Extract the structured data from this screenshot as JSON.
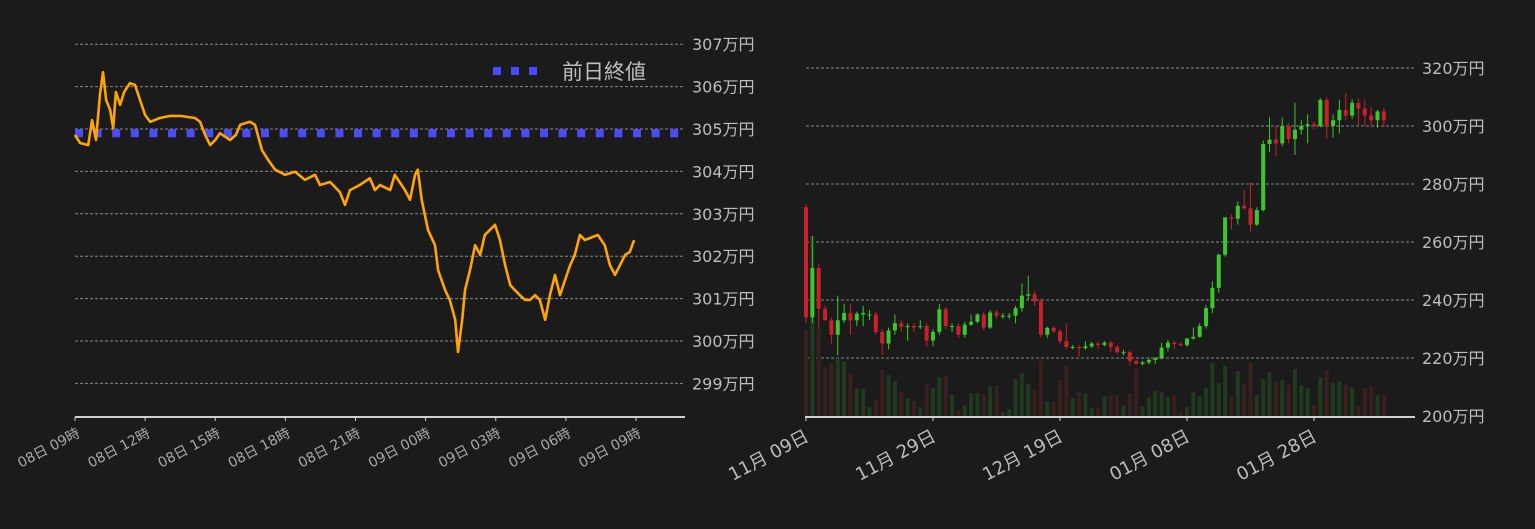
{
  "chart_data": [
    {
      "type": "line",
      "ylim": [
        298.2,
        307
      ],
      "y_ticks": [
        299,
        300,
        301,
        302,
        303,
        304,
        305,
        306,
        307
      ],
      "y_tick_labels": [
        "299万円",
        "300万円",
        "301万円",
        "302万円",
        "303万円",
        "304万円",
        "305万円",
        "306万円",
        "307万円"
      ],
      "x_ticks": [
        "08 09:00",
        "08 12:00",
        "08 15:00",
        "08 18:00",
        "08 21:00",
        "09 00:00",
        "09 03:00",
        "09 06:00",
        "09 09:00"
      ],
      "x_tick_labels": [
        "08日 09時",
        "08日 12時",
        "08日 15時",
        "08日 18時",
        "08日 21時",
        "09日 00時",
        "09日 03時",
        "09日 06時",
        "09日 09時"
      ],
      "grid": true,
      "legend": {
        "position": "top-right",
        "label": "前日終値"
      },
      "previous_close": 304.9,
      "colors": {
        "line": "#ffa500",
        "previous_close": "#4a4aff",
        "grid": "#8a8a8a"
      },
      "series": [
        {
          "points": [
            [
              "08 09:00",
              304.86
            ],
            [
              "08 09:13",
              304.67
            ],
            [
              "08 09:34",
              304.62
            ],
            [
              "08 09:44",
              305.21
            ],
            [
              "08 09:54",
              304.74
            ],
            [
              "08 10:04",
              305.8
            ],
            [
              "08 10:12",
              306.34
            ],
            [
              "08 10:20",
              305.68
            ],
            [
              "08 10:30",
              305.45
            ],
            [
              "08 10:38",
              305.02
            ],
            [
              "08 10:45",
              305.87
            ],
            [
              "08 10:56",
              305.57
            ],
            [
              "08 11:06",
              305.87
            ],
            [
              "08 11:21",
              306.08
            ],
            [
              "08 11:34",
              306.04
            ],
            [
              "08 11:47",
              305.68
            ],
            [
              "08 12:00",
              305.33
            ],
            [
              "08 12:13",
              305.17
            ],
            [
              "08 12:38",
              305.26
            ],
            [
              "08 13:04",
              305.31
            ],
            [
              "08 13:30",
              305.31
            ],
            [
              "08 14:08",
              305.26
            ],
            [
              "08 14:21",
              305.17
            ],
            [
              "08 14:34",
              304.86
            ],
            [
              "08 14:47",
              304.62
            ],
            [
              "08 15:00",
              304.74
            ],
            [
              "08 15:12",
              304.9
            ],
            [
              "08 15:38",
              304.74
            ],
            [
              "08 15:53",
              304.86
            ],
            [
              "08 16:04",
              305.1
            ],
            [
              "08 16:29",
              305.17
            ],
            [
              "08 16:42",
              305.1
            ],
            [
              "08 17:00",
              304.5
            ],
            [
              "08 17:16",
              304.27
            ],
            [
              "08 17:34",
              304.04
            ],
            [
              "08 17:59",
              303.92
            ],
            [
              "08 18:25",
              303.99
            ],
            [
              "08 18:50",
              303.8
            ],
            [
              "08 19:16",
              303.92
            ],
            [
              "08 19:29",
              303.68
            ],
            [
              "08 19:55",
              303.75
            ],
            [
              "08 20:20",
              303.51
            ],
            [
              "08 20:33",
              303.21
            ],
            [
              "08 20:46",
              303.56
            ],
            [
              "08 21:11",
              303.68
            ],
            [
              "08 21:37",
              303.84
            ],
            [
              "08 21:50",
              303.56
            ],
            [
              "08 22:03",
              303.68
            ],
            [
              "08 22:29",
              303.56
            ],
            [
              "08 22:41",
              303.92
            ],
            [
              "08 23:07",
              303.56
            ],
            [
              "08 23:20",
              303.33
            ],
            [
              "08 23:33",
              303.92
            ],
            [
              "08 23:40",
              304.04
            ],
            [
              "08 23:50",
              303.33
            ],
            [
              "09 00:06",
              302.62
            ],
            [
              "09 00:24",
              302.26
            ],
            [
              "09 00:32",
              301.67
            ],
            [
              "09 00:50",
              301.2
            ],
            [
              "09 01:02",
              300.97
            ],
            [
              "09 01:16",
              300.5
            ],
            [
              "09 01:23",
              299.74
            ],
            [
              "09 01:34",
              300.5
            ],
            [
              "09 01:41",
              301.2
            ],
            [
              "09 01:54",
              301.67
            ],
            [
              "09 02:07",
              302.26
            ],
            [
              "09 02:20",
              302.03
            ],
            [
              "09 02:32",
              302.5
            ],
            [
              "09 02:45",
              302.62
            ],
            [
              "09 02:58",
              302.74
            ],
            [
              "09 03:11",
              302.38
            ],
            [
              "09 03:24",
              301.79
            ],
            [
              "09 03:37",
              301.32
            ],
            [
              "09 03:49",
              301.2
            ],
            [
              "09 04:02",
              301.08
            ],
            [
              "09 04:15",
              300.97
            ],
            [
              "09 04:28",
              300.97
            ],
            [
              "09 04:41",
              301.08
            ],
            [
              "09 04:53",
              300.97
            ],
            [
              "09 05:07",
              300.5
            ],
            [
              "09 05:19",
              301.08
            ],
            [
              "09 05:32",
              301.56
            ],
            [
              "09 05:45",
              301.08
            ],
            [
              "09 05:58",
              301.44
            ],
            [
              "09 06:11",
              301.79
            ],
            [
              "09 06:23",
              302.03
            ],
            [
              "09 06:36",
              302.5
            ],
            [
              "09 06:49",
              302.38
            ],
            [
              "09 07:02",
              302.43
            ],
            [
              "09 07:22",
              302.5
            ],
            [
              "09 07:40",
              302.26
            ],
            [
              "09 07:53",
              301.79
            ],
            [
              "09 08:06",
              301.56
            ],
            [
              "09 08:19",
              301.79
            ],
            [
              "09 08:32",
              302.03
            ],
            [
              "09 08:44",
              302.1
            ],
            [
              "09 08:55",
              302.38
            ]
          ]
        }
      ]
    },
    {
      "type": "candlestick",
      "ylim": [
        200,
        320
      ],
      "y_ticks": [
        200,
        220,
        240,
        260,
        280,
        300,
        320
      ],
      "y_tick_labels": [
        "200万円",
        "220万円",
        "240万円",
        "260万円",
        "280万円",
        "300万円",
        "320万円"
      ],
      "x_tick_labels": [
        "11月 09日",
        "11月 29日",
        "12月 19日",
        "01月 08日",
        "01月 28日"
      ],
      "x_tick_index": [
        0,
        20,
        40,
        60,
        80
      ],
      "grid": true,
      "colors": {
        "up": "#3cc82a",
        "down": "#c9202b",
        "up_volume": "#1f3a1f",
        "down_volume": "#3a1f1f",
        "grid": "#8a8a8a"
      },
      "ohlc": [
        [
          272,
          273,
          232,
          234
        ],
        [
          234,
          262,
          232,
          251
        ],
        [
          251,
          252.5,
          230,
          237
        ],
        [
          237,
          238,
          233,
          233
        ],
        [
          233,
          234,
          225,
          228
        ],
        [
          228,
          241.5,
          221,
          233
        ],
        [
          233,
          238.7,
          232,
          235.5
        ],
        [
          235.5,
          238.7,
          228,
          233
        ],
        [
          233,
          236,
          231,
          235.3
        ],
        [
          235,
          238,
          231,
          235.5
        ],
        [
          235,
          236.5,
          233,
          235
        ],
        [
          235,
          236,
          228,
          229
        ],
        [
          229,
          230,
          221,
          225
        ],
        [
          225,
          230.5,
          223,
          229.5
        ],
        [
          229.5,
          235,
          228,
          232
        ],
        [
          232,
          233,
          229,
          230.8
        ],
        [
          231,
          232,
          226,
          231
        ],
        [
          231,
          232,
          229,
          230.5
        ],
        [
          231,
          233,
          230,
          231
        ],
        [
          231,
          232,
          224,
          226
        ],
        [
          226,
          230,
          224,
          229
        ],
        [
          229,
          238.7,
          228,
          236.8
        ],
        [
          236.8,
          237.5,
          230,
          231
        ],
        [
          231,
          232,
          229,
          231
        ],
        [
          231,
          232,
          227,
          228
        ],
        [
          228,
          232.5,
          227,
          231.5
        ],
        [
          231.5,
          235,
          231,
          232.5
        ],
        [
          232.5,
          235.5,
          232,
          235
        ],
        [
          235,
          236,
          229.5,
          230.5
        ],
        [
          230.5,
          236.5,
          230,
          235.7
        ],
        [
          235.7,
          236.5,
          233.5,
          234.6
        ],
        [
          234.6,
          235.5,
          233.5,
          234.6
        ],
        [
          234.6,
          235.5,
          233.5,
          234.6
        ],
        [
          234.6,
          238,
          232,
          237.2
        ],
        [
          237.2,
          245.7,
          236,
          241.5
        ],
        [
          241.5,
          248.4,
          240,
          242
        ],
        [
          242,
          243,
          238,
          239.6
        ],
        [
          239.6,
          240.5,
          227,
          228
        ],
        [
          228,
          230.8,
          227,
          230.4
        ],
        [
          230.4,
          231,
          228.5,
          229.2
        ],
        [
          229.2,
          230,
          225,
          225.8
        ],
        [
          225.8,
          232,
          223,
          223.8
        ],
        [
          223.8,
          224.5,
          223,
          223.8
        ],
        [
          223.8,
          224.5,
          220.5,
          223.4
        ],
        [
          223.4,
          225.8,
          222.8,
          224
        ],
        [
          224,
          225.5,
          223.5,
          225
        ],
        [
          225,
          225.8,
          223.2,
          224.5
        ],
        [
          224.5,
          225.8,
          224,
          225.3
        ],
        [
          225.3,
          226,
          222,
          223.8
        ],
        [
          223.8,
          224.5,
          221.5,
          222
        ],
        [
          222,
          222.8,
          221,
          222
        ],
        [
          222,
          222.5,
          217.5,
          219
        ],
        [
          219,
          219.5,
          217.8,
          218
        ],
        [
          218,
          219,
          217.5,
          218.5
        ],
        [
          218.5,
          220,
          217.8,
          219.3
        ],
        [
          219.3,
          220.3,
          218,
          219.8
        ],
        [
          219.8,
          225.3,
          219.5,
          223.6
        ],
        [
          223.6,
          226.3,
          222.3,
          225.3
        ],
        [
          225.3,
          226,
          223,
          224.8
        ],
        [
          224.8,
          225.5,
          224,
          224.4
        ],
        [
          224.4,
          227,
          224,
          226.7
        ],
        [
          226.7,
          230.5,
          226.3,
          227.3
        ],
        [
          227.3,
          232,
          227,
          231
        ],
        [
          231,
          238.2,
          230.2,
          237.2
        ],
        [
          237.2,
          246.5,
          235.5,
          244.2
        ],
        [
          244.2,
          256,
          242.5,
          255.6
        ],
        [
          255.6,
          268.5,
          255,
          268.5
        ],
        [
          268.5,
          269.5,
          264.3,
          268
        ],
        [
          268,
          274,
          266,
          272.5
        ],
        [
          272.5,
          278,
          271,
          271.6
        ],
        [
          271.6,
          280.6,
          263.5,
          266
        ],
        [
          266,
          272,
          265.5,
          271
        ],
        [
          271,
          295,
          270.5,
          293.8
        ],
        [
          293.8,
          303,
          291,
          295.3
        ],
        [
          295.3,
          300,
          289.5,
          294
        ],
        [
          294,
          303,
          293,
          300
        ],
        [
          300,
          301,
          294,
          295.5
        ],
        [
          295.5,
          308,
          290,
          298.7
        ],
        [
          298.7,
          302,
          297,
          300
        ],
        [
          300,
          304,
          294,
          300.6
        ],
        [
          300.6,
          301.5,
          299,
          300
        ],
        [
          300,
          309.6,
          299.5,
          309
        ],
        [
          309,
          310,
          295.5,
          300
        ],
        [
          300,
          304,
          296,
          302
        ],
        [
          302,
          309,
          297.5,
          305.5
        ],
        [
          305.5,
          311.4,
          302,
          303.6
        ],
        [
          303.6,
          309.2,
          302.5,
          308
        ],
        [
          308,
          309.6,
          300,
          306
        ],
        [
          306,
          309,
          300,
          303.6
        ],
        [
          303.6,
          306.5,
          299.7,
          302
        ],
        [
          302,
          305.5,
          299.5,
          305
        ],
        [
          305,
          306.2,
          299.7,
          302
        ]
      ],
      "volume": [
        258,
        538,
        258,
        146,
        158,
        173,
        163,
        125,
        83,
        81,
        26,
        50,
        138,
        122,
        105,
        74,
        53,
        44,
        26,
        96,
        83,
        116,
        119,
        63,
        18,
        32,
        68,
        68,
        65,
        89,
        92,
        11,
        21,
        110,
        128,
        96,
        77,
        165,
        44,
        41,
        107,
        149,
        53,
        74,
        68,
        23,
        26,
        59,
        62,
        62,
        32,
        68,
        143,
        29,
        56,
        74,
        71,
        56,
        62,
        14,
        26,
        71,
        59,
        83,
        158,
        98,
        149,
        56,
        134,
        98,
        158,
        62,
        110,
        131,
        101,
        107,
        95,
        140,
        92,
        83,
        32,
        116,
        137,
        98,
        104,
        95,
        86,
        29,
        83,
        89,
        62,
        65
      ]
    }
  ]
}
